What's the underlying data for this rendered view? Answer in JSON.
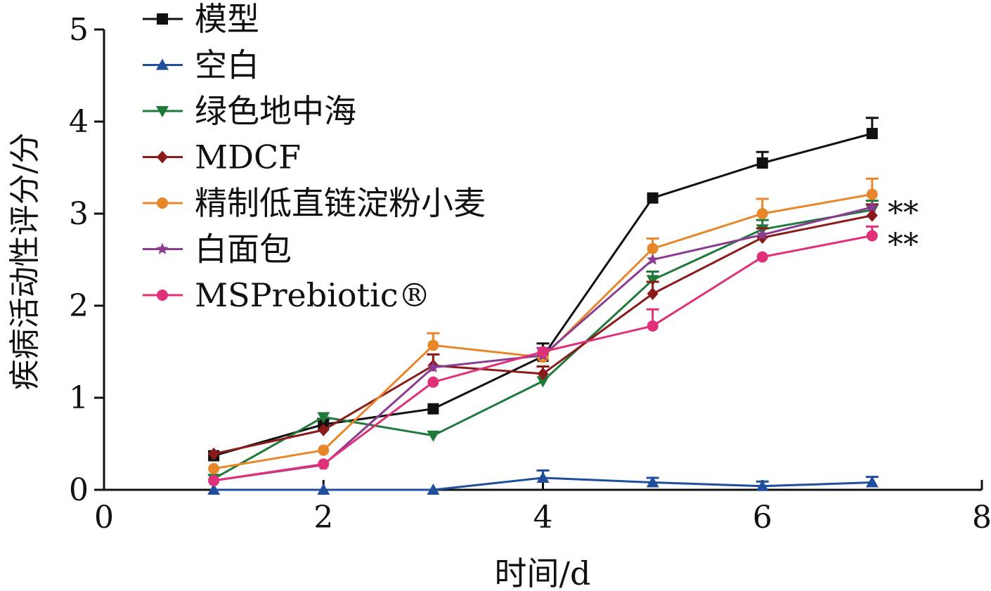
{
  "chart_data": {
    "type": "line",
    "xlabel": "时间/d",
    "ylabel": "疾病活动性评分/分",
    "xlim": [
      0,
      8
    ],
    "ylim": [
      0,
      5
    ],
    "xticks": [
      "0",
      "2",
      "4",
      "6",
      "8"
    ],
    "yticks": [
      "0",
      "1",
      "2",
      "3",
      "4",
      "5"
    ],
    "grid": false,
    "legend_position": "top-left",
    "annotations": [
      "**",
      "**"
    ],
    "series": [
      {
        "name": "模型",
        "color": "#111111",
        "marker": "square",
        "x": [
          1,
          2,
          3,
          4,
          5,
          6,
          7
        ],
        "y": [
          0.37,
          0.71,
          0.88,
          1.45,
          3.17,
          3.55,
          3.87
        ],
        "err": [
          0,
          0.06,
          0,
          0.14,
          0,
          0.12,
          0.17
        ]
      },
      {
        "name": "空白",
        "color": "#1f4e9c",
        "marker": "triangle-up",
        "x": [
          1,
          2,
          3,
          4,
          5,
          6,
          7
        ],
        "y": [
          0.0,
          0.0,
          0.0,
          0.13,
          0.08,
          0.04,
          0.08
        ],
        "err": [
          0,
          0,
          0,
          0.08,
          0.05,
          0.05,
          0.06
        ]
      },
      {
        "name": "绿色地中海",
        "color": "#1f7a3a",
        "marker": "triangle-down",
        "x": [
          1,
          2,
          3,
          4,
          5,
          6,
          7
        ],
        "y": [
          0.12,
          0.79,
          0.59,
          1.18,
          2.28,
          2.83,
          3.04
        ],
        "err": [
          0,
          0,
          0,
          0,
          0.09,
          0.1,
          0.1
        ]
      },
      {
        "name": "MDCF",
        "color": "#8b1a1a",
        "marker": "diamond",
        "x": [
          1,
          2,
          3,
          4,
          5,
          6,
          7
        ],
        "y": [
          0.39,
          0.65,
          1.35,
          1.26,
          2.13,
          2.74,
          2.98
        ],
        "err": [
          0,
          0,
          0.12,
          0.08,
          0.13,
          0.1,
          0.12
        ]
      },
      {
        "name": "精制低直链淀粉小麦",
        "color": "#e8862a",
        "marker": "circle",
        "x": [
          1,
          2,
          3,
          4,
          5,
          6,
          7
        ],
        "y": [
          0.23,
          0.43,
          1.57,
          1.44,
          2.62,
          3.0,
          3.21
        ],
        "err": [
          0,
          0,
          0.13,
          0,
          0.11,
          0.16,
          0.17
        ]
      },
      {
        "name": "白面包",
        "color": "#8a3c92",
        "marker": "star",
        "x": [
          1,
          2,
          3,
          4,
          5,
          6,
          7
        ],
        "y": [
          0.1,
          0.27,
          1.33,
          1.46,
          2.5,
          2.77,
          3.07
        ],
        "err": [
          0,
          0,
          0,
          0.08,
          0,
          0,
          0
        ]
      },
      {
        "name": "MSPrebiotic®",
        "color": "#e0307a",
        "marker": "circle",
        "x": [
          1,
          2,
          3,
          4,
          5,
          6,
          7
        ],
        "y": [
          0.1,
          0.28,
          1.17,
          1.5,
          1.78,
          2.53,
          2.76
        ],
        "err": [
          0,
          0,
          0,
          0,
          0.18,
          0,
          0.1
        ]
      }
    ]
  }
}
